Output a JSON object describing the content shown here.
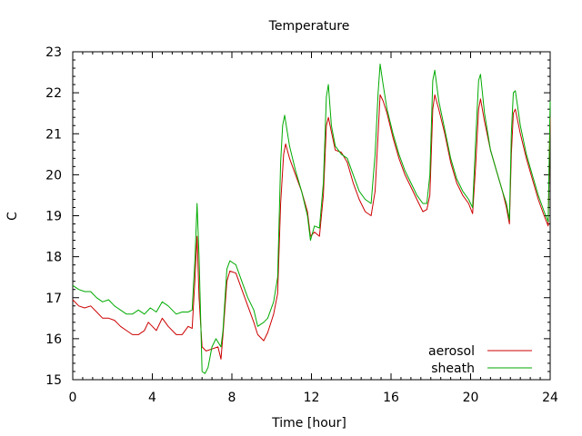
{
  "chart_data": {
    "type": "line",
    "title": "Temperature",
    "xlabel": "Time [hour]",
    "ylabel": "C",
    "xlim": [
      0,
      24
    ],
    "ylim": [
      15,
      23
    ],
    "xticks": [
      0,
      4,
      8,
      12,
      16,
      20,
      24
    ],
    "yticks": [
      15,
      16,
      17,
      18,
      19,
      20,
      21,
      22,
      23
    ],
    "grid": false,
    "legend_position": "bottom-right",
    "series": [
      {
        "name": "aerosol",
        "color": "#cc0000",
        "points": [
          [
            0,
            16.95
          ],
          [
            0.3,
            16.8
          ],
          [
            0.6,
            16.75
          ],
          [
            0.9,
            16.8
          ],
          [
            1.2,
            16.65
          ],
          [
            1.5,
            16.5
          ],
          [
            1.8,
            16.5
          ],
          [
            2.1,
            16.45
          ],
          [
            2.4,
            16.3
          ],
          [
            2.7,
            16.2
          ],
          [
            3.0,
            16.1
          ],
          [
            3.3,
            16.1
          ],
          [
            3.6,
            16.2
          ],
          [
            3.8,
            16.4
          ],
          [
            4.0,
            16.3
          ],
          [
            4.2,
            16.2
          ],
          [
            4.5,
            16.5
          ],
          [
            4.8,
            16.3
          ],
          [
            5.2,
            16.1
          ],
          [
            5.5,
            16.1
          ],
          [
            5.8,
            16.3
          ],
          [
            6.0,
            16.25
          ],
          [
            6.15,
            17.5
          ],
          [
            6.25,
            18.5
          ],
          [
            6.35,
            17.0
          ],
          [
            6.5,
            15.8
          ],
          [
            6.7,
            15.7
          ],
          [
            7.0,
            15.75
          ],
          [
            7.3,
            15.8
          ],
          [
            7.45,
            15.5
          ],
          [
            7.55,
            16.1
          ],
          [
            7.75,
            17.4
          ],
          [
            7.9,
            17.65
          ],
          [
            8.2,
            17.6
          ],
          [
            8.5,
            17.2
          ],
          [
            8.8,
            16.8
          ],
          [
            9.1,
            16.4
          ],
          [
            9.3,
            16.1
          ],
          [
            9.6,
            15.95
          ],
          [
            9.8,
            16.15
          ],
          [
            10.1,
            16.6
          ],
          [
            10.3,
            17.1
          ],
          [
            10.45,
            19.3
          ],
          [
            10.6,
            20.5
          ],
          [
            10.7,
            20.75
          ],
          [
            10.9,
            20.4
          ],
          [
            11.2,
            20.0
          ],
          [
            11.5,
            19.6
          ],
          [
            11.8,
            19.1
          ],
          [
            11.95,
            18.5
          ],
          [
            12.15,
            18.6
          ],
          [
            12.4,
            18.5
          ],
          [
            12.6,
            19.5
          ],
          [
            12.75,
            21.2
          ],
          [
            12.85,
            21.4
          ],
          [
            13.0,
            21.05
          ],
          [
            13.2,
            20.6
          ],
          [
            13.5,
            20.55
          ],
          [
            13.8,
            20.3
          ],
          [
            14.1,
            19.8
          ],
          [
            14.4,
            19.4
          ],
          [
            14.7,
            19.1
          ],
          [
            15.0,
            19.0
          ],
          [
            15.2,
            19.6
          ],
          [
            15.35,
            21.0
          ],
          [
            15.45,
            21.95
          ],
          [
            15.6,
            21.8
          ],
          [
            15.8,
            21.5
          ],
          [
            16.1,
            20.9
          ],
          [
            16.4,
            20.4
          ],
          [
            16.7,
            20.0
          ],
          [
            17.0,
            19.7
          ],
          [
            17.3,
            19.4
          ],
          [
            17.6,
            19.1
          ],
          [
            17.8,
            19.15
          ],
          [
            17.95,
            19.5
          ],
          [
            18.1,
            21.6
          ],
          [
            18.2,
            21.95
          ],
          [
            18.4,
            21.6
          ],
          [
            18.7,
            21.0
          ],
          [
            19.0,
            20.3
          ],
          [
            19.3,
            19.8
          ],
          [
            19.6,
            19.5
          ],
          [
            19.9,
            19.3
          ],
          [
            20.1,
            19.05
          ],
          [
            20.25,
            20.2
          ],
          [
            20.4,
            21.6
          ],
          [
            20.5,
            21.85
          ],
          [
            20.7,
            21.3
          ],
          [
            21.0,
            20.6
          ],
          [
            21.3,
            20.1
          ],
          [
            21.6,
            19.6
          ],
          [
            21.8,
            19.2
          ],
          [
            21.95,
            18.8
          ],
          [
            22.05,
            20.5
          ],
          [
            22.15,
            21.5
          ],
          [
            22.25,
            21.6
          ],
          [
            22.5,
            21.0
          ],
          [
            22.8,
            20.4
          ],
          [
            23.1,
            19.9
          ],
          [
            23.4,
            19.4
          ],
          [
            23.7,
            19.0
          ],
          [
            23.9,
            18.75
          ],
          [
            24.0,
            21.4
          ]
        ]
      },
      {
        "name": "sheath",
        "color": "#00aa00",
        "points": [
          [
            0,
            17.3
          ],
          [
            0.3,
            17.2
          ],
          [
            0.6,
            17.15
          ],
          [
            0.9,
            17.15
          ],
          [
            1.2,
            17.0
          ],
          [
            1.5,
            16.9
          ],
          [
            1.8,
            16.95
          ],
          [
            2.1,
            16.8
          ],
          [
            2.4,
            16.7
          ],
          [
            2.7,
            16.6
          ],
          [
            3.0,
            16.6
          ],
          [
            3.3,
            16.7
          ],
          [
            3.6,
            16.6
          ],
          [
            3.9,
            16.75
          ],
          [
            4.2,
            16.65
          ],
          [
            4.5,
            16.9
          ],
          [
            4.8,
            16.8
          ],
          [
            5.2,
            16.6
          ],
          [
            5.5,
            16.65
          ],
          [
            5.8,
            16.65
          ],
          [
            6.0,
            16.7
          ],
          [
            6.15,
            18.0
          ],
          [
            6.25,
            19.3
          ],
          [
            6.35,
            18.0
          ],
          [
            6.5,
            15.2
          ],
          [
            6.65,
            15.15
          ],
          [
            6.8,
            15.3
          ],
          [
            7.0,
            15.8
          ],
          [
            7.2,
            16.0
          ],
          [
            7.45,
            15.8
          ],
          [
            7.55,
            16.2
          ],
          [
            7.75,
            17.7
          ],
          [
            7.9,
            17.9
          ],
          [
            8.2,
            17.8
          ],
          [
            8.5,
            17.4
          ],
          [
            8.8,
            17.0
          ],
          [
            9.1,
            16.7
          ],
          [
            9.3,
            16.3
          ],
          [
            9.6,
            16.4
          ],
          [
            9.8,
            16.5
          ],
          [
            10.1,
            16.9
          ],
          [
            10.3,
            17.5
          ],
          [
            10.45,
            20.3
          ],
          [
            10.55,
            21.2
          ],
          [
            10.65,
            21.45
          ],
          [
            10.9,
            20.7
          ],
          [
            11.2,
            20.1
          ],
          [
            11.5,
            19.6
          ],
          [
            11.8,
            19.0
          ],
          [
            11.95,
            18.4
          ],
          [
            12.15,
            18.75
          ],
          [
            12.4,
            18.7
          ],
          [
            12.6,
            19.8
          ],
          [
            12.75,
            21.9
          ],
          [
            12.85,
            22.2
          ],
          [
            13.0,
            21.2
          ],
          [
            13.2,
            20.7
          ],
          [
            13.5,
            20.5
          ],
          [
            13.8,
            20.4
          ],
          [
            14.1,
            20.0
          ],
          [
            14.4,
            19.6
          ],
          [
            14.7,
            19.4
          ],
          [
            15.0,
            19.3
          ],
          [
            15.2,
            20.5
          ],
          [
            15.35,
            22.0
          ],
          [
            15.45,
            22.7
          ],
          [
            15.6,
            22.2
          ],
          [
            15.8,
            21.6
          ],
          [
            16.1,
            21.0
          ],
          [
            16.4,
            20.5
          ],
          [
            16.7,
            20.1
          ],
          [
            17.0,
            19.8
          ],
          [
            17.3,
            19.5
          ],
          [
            17.6,
            19.3
          ],
          [
            17.8,
            19.3
          ],
          [
            17.95,
            20.0
          ],
          [
            18.1,
            22.3
          ],
          [
            18.2,
            22.55
          ],
          [
            18.4,
            21.8
          ],
          [
            18.7,
            21.1
          ],
          [
            19.0,
            20.4
          ],
          [
            19.3,
            19.9
          ],
          [
            19.6,
            19.6
          ],
          [
            19.9,
            19.4
          ],
          [
            20.1,
            19.2
          ],
          [
            20.25,
            20.8
          ],
          [
            20.4,
            22.3
          ],
          [
            20.5,
            22.45
          ],
          [
            20.7,
            21.5
          ],
          [
            21.0,
            20.6
          ],
          [
            21.3,
            20.1
          ],
          [
            21.6,
            19.6
          ],
          [
            21.8,
            19.3
          ],
          [
            21.95,
            18.9
          ],
          [
            22.05,
            21.0
          ],
          [
            22.15,
            22.0
          ],
          [
            22.25,
            22.05
          ],
          [
            22.5,
            21.2
          ],
          [
            22.8,
            20.5
          ],
          [
            23.1,
            20.0
          ],
          [
            23.4,
            19.5
          ],
          [
            23.7,
            19.1
          ],
          [
            23.9,
            18.85
          ],
          [
            24.0,
            21.8
          ]
        ]
      }
    ]
  }
}
